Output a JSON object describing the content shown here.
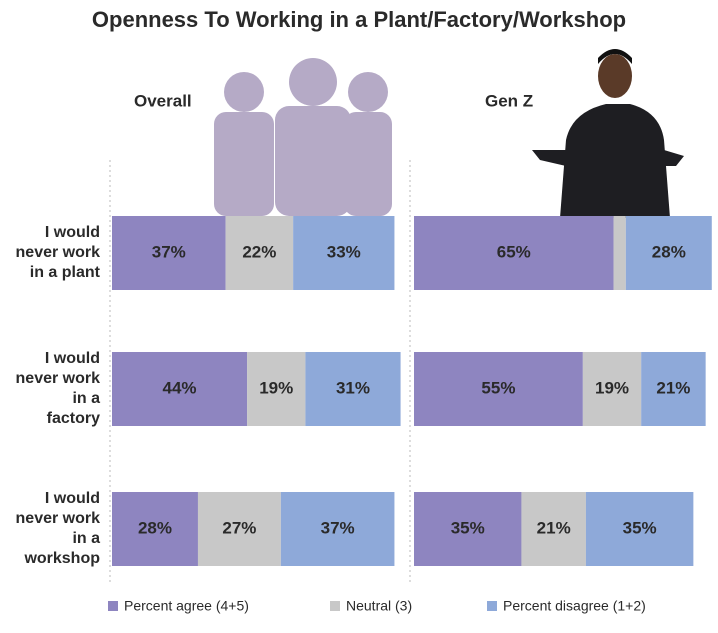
{
  "chart_data": {
    "type": "bar",
    "stacked": true,
    "title": "Openness To Working in a Plant/Factory/Workshop",
    "panels": [
      "Overall",
      "Gen Z"
    ],
    "categories": [
      [
        "I would",
        "never work",
        "in a plant"
      ],
      [
        "I would",
        "never work",
        "in a",
        "factory"
      ],
      [
        "I would",
        "never work",
        "in a",
        "workshop"
      ]
    ],
    "series": [
      {
        "name": "Percent agree (4+5)",
        "color": "#8e85c0",
        "values": [
          [
            37,
            44,
            28
          ],
          [
            65,
            55,
            35
          ]
        ],
        "value_labels": [
          [
            "37%",
            "44%",
            "28%"
          ],
          [
            "65%",
            "55%",
            "35%"
          ]
        ]
      },
      {
        "name": "Neutral (3)",
        "color": "#c8c8c8",
        "values": [
          [
            22,
            19,
            27
          ],
          [
            4,
            19,
            21
          ]
        ],
        "value_labels": [
          [
            "22%",
            "19%",
            "27%"
          ],
          [
            null,
            "19%",
            "21%"
          ]
        ]
      },
      {
        "name": "Percent disagree (1+2)",
        "color": "#8ea9d9",
        "values": [
          [
            33,
            31,
            37
          ],
          [
            28,
            21,
            35
          ]
        ],
        "value_labels": [
          [
            "33%",
            "31%",
            "37%"
          ],
          [
            "28%",
            "21%",
            "35%"
          ]
        ]
      }
    ]
  }
}
